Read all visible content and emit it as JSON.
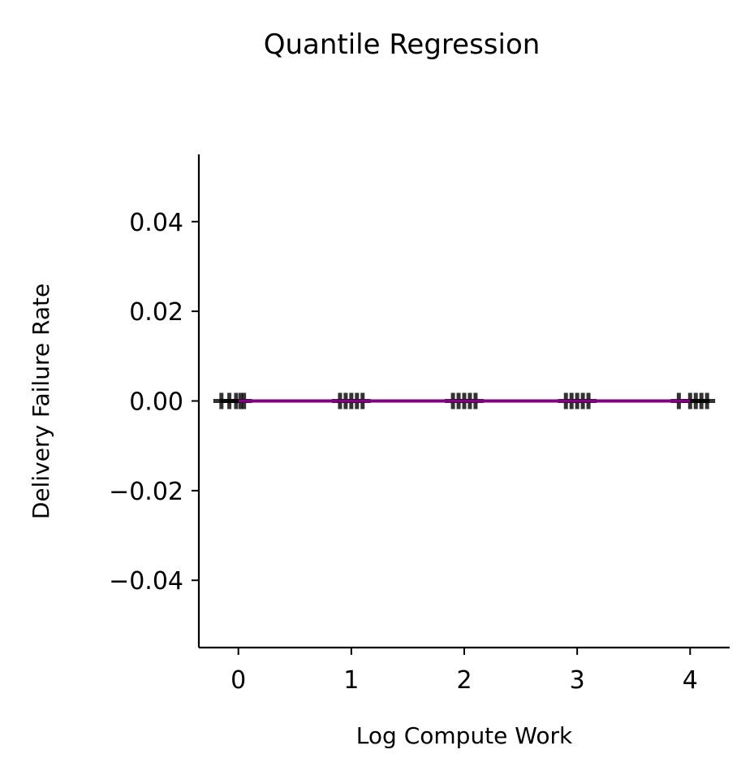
{
  "chart_data": {
    "type": "scatter",
    "title": "Quantile Regression",
    "xlabel": "Log Compute Work",
    "ylabel": "Delivery Failure Rate",
    "xlim": [
      -0.35,
      4.35
    ],
    "ylim": [
      -0.055,
      0.055
    ],
    "x_ticks": [
      0,
      1,
      2,
      3,
      4
    ],
    "x_tick_labels": [
      "0",
      "1",
      "2",
      "3",
      "4"
    ],
    "y_ticks": [
      0.04,
      0.02,
      0.0,
      -0.02,
      -0.04
    ],
    "y_tick_labels": [
      "0.04",
      "0.02",
      "0.00",
      "−0.02",
      "−0.04"
    ],
    "grid": false,
    "legend": "none",
    "series": [
      {
        "kind": "points",
        "marker": "plus",
        "color": "#000000",
        "x": [
          -0.15,
          -0.08,
          -0.02,
          0.02,
          0.05,
          0.9,
          0.95,
          1.0,
          1.05,
          1.1,
          1.9,
          1.95,
          2.0,
          2.05,
          2.1,
          2.9,
          2.95,
          3.0,
          3.05,
          3.1,
          3.9,
          4.0,
          4.05,
          4.1,
          4.15
        ],
        "y": [
          0,
          0,
          0,
          0,
          0,
          0,
          0,
          0,
          0,
          0,
          0,
          0,
          0,
          0,
          0,
          0,
          0,
          0,
          0,
          0,
          0,
          0,
          0,
          0,
          0
        ]
      },
      {
        "kind": "line",
        "color": "#800080",
        "x": [
          0,
          4
        ],
        "y": [
          0,
          0
        ]
      }
    ]
  }
}
